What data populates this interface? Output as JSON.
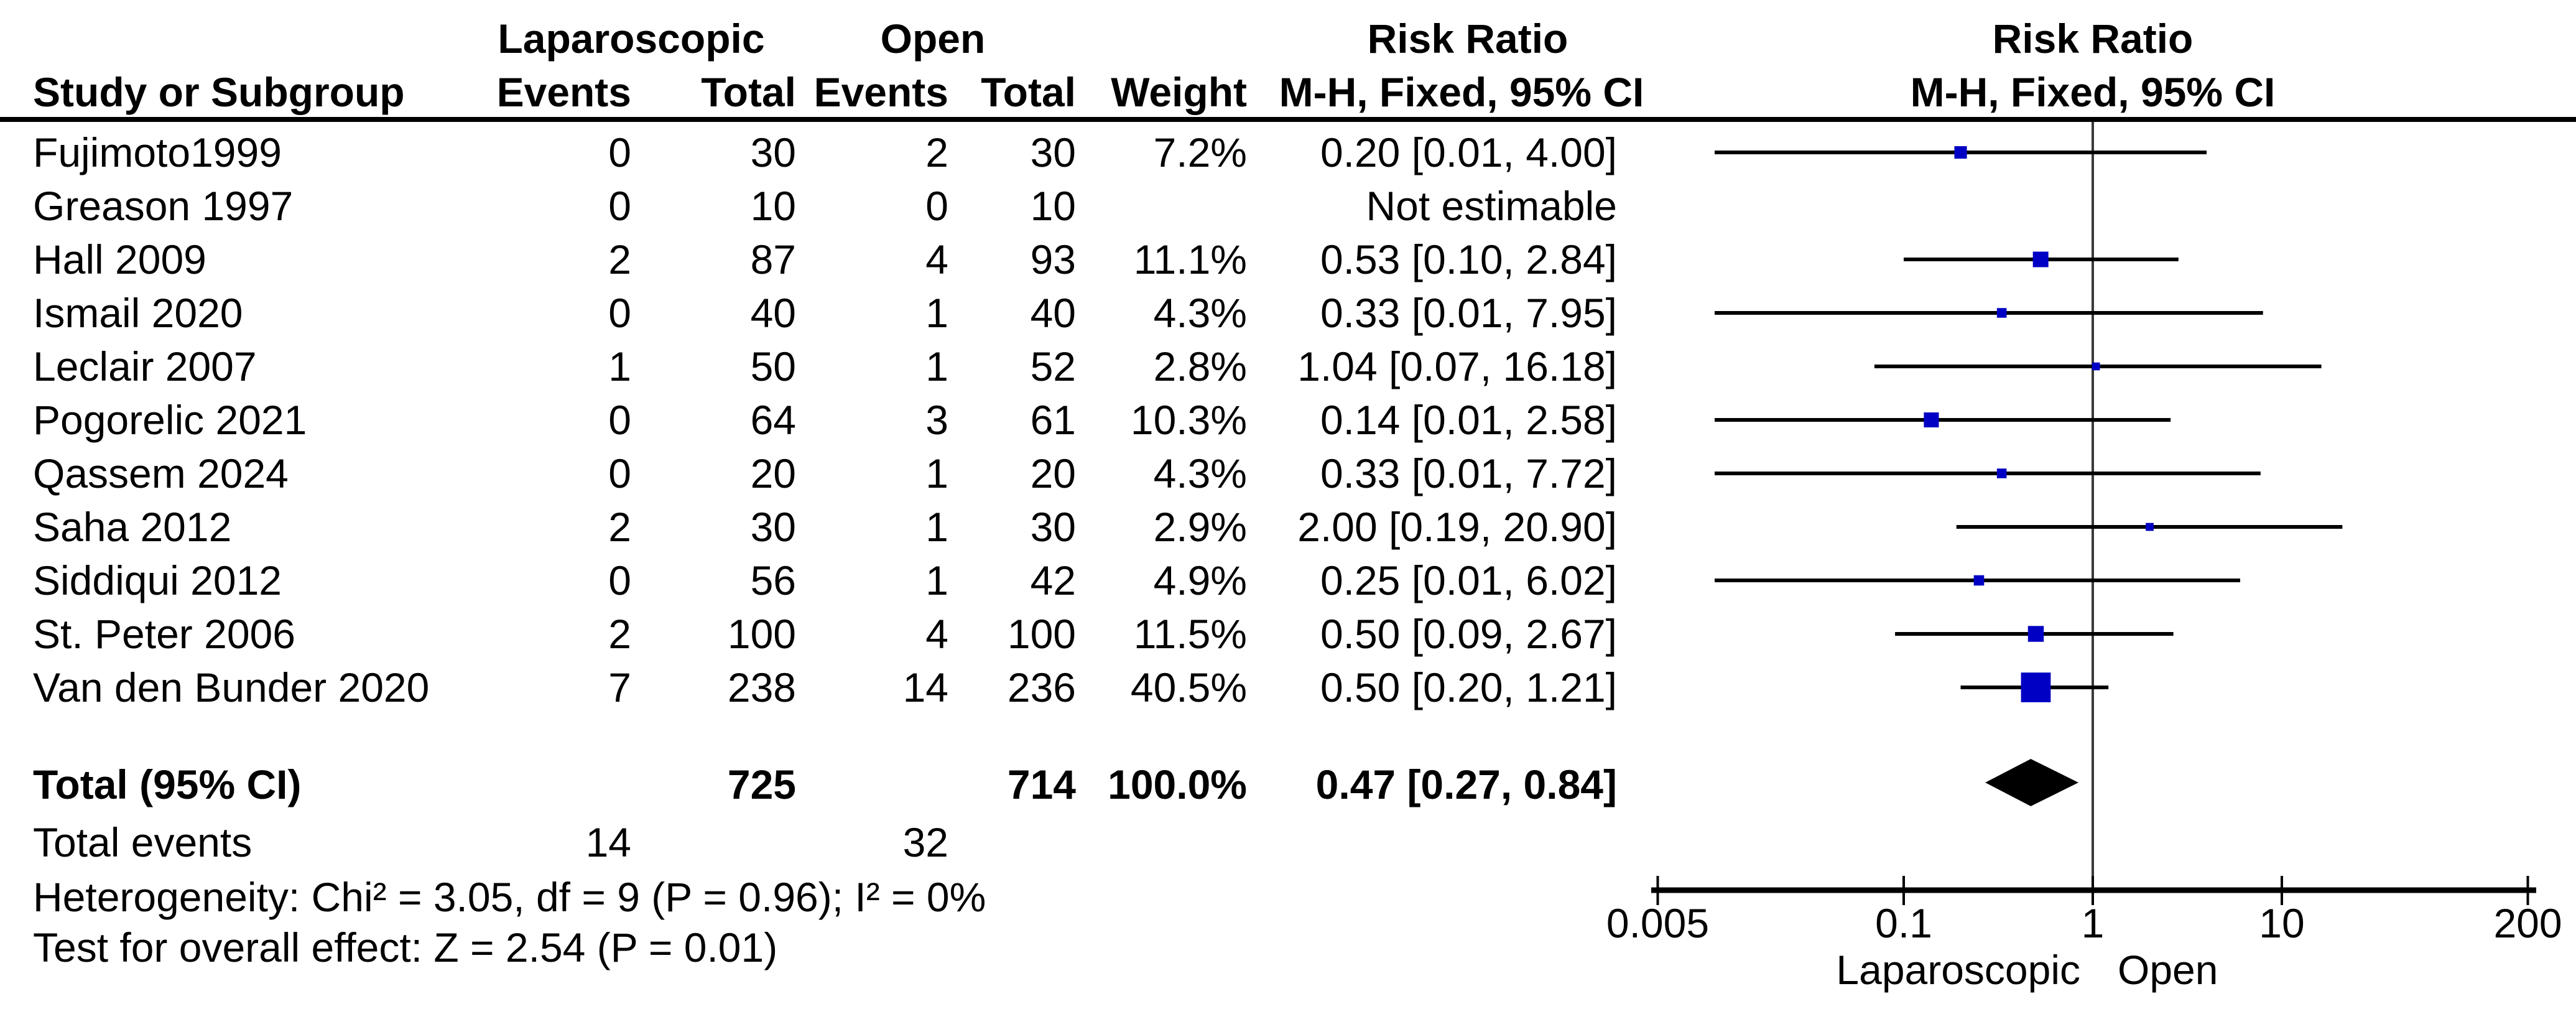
{
  "header": {
    "group_lap": "Laparoscopic",
    "group_open": "Open",
    "risk_ratio": "Risk Ratio",
    "col_study": "Study or Subgroup",
    "col_events": "Events",
    "col_total": "Total",
    "col_weight": "Weight",
    "col_mh": "M-H, Fixed, 95% CI"
  },
  "totals": {
    "label": "Total (95% CI)",
    "lap_total": "725",
    "open_total": "714",
    "weight": "100.0%",
    "rr_ci": "0.47 [0.27, 0.84]",
    "events_label": "Total events",
    "lap_events": "14",
    "open_events": "32"
  },
  "footer": {
    "heterogeneity": "Heterogeneity: Chi² = 3.05, df = 9 (P = 0.96); I² = 0%",
    "overall_effect": "Test for overall effect: Z = 2.54 (P = 0.01)"
  },
  "chart_data": {
    "type": "forest",
    "title": "Risk Ratio",
    "effect_measure": "M-H, Fixed, 95% CI",
    "x_scale": "log",
    "x_ticks": [
      0.005,
      0.1,
      1,
      10,
      200
    ],
    "x_tick_labels": [
      "0.005",
      "0.1",
      "1",
      "10",
      "200"
    ],
    "x_range": [
      0.005,
      200
    ],
    "null_line": 1,
    "favours_left": "Laparoscopic",
    "favours_right": "Open",
    "marker_color": "#0000C4",
    "line_color": "#000000",
    "studies": [
      {
        "name": "Fujimoto1999",
        "lap_events": "0",
        "lap_total": "30",
        "open_events": "2",
        "open_total": "30",
        "weight": "7.2%",
        "rr_ci": "0.20 [0.01, 4.00]",
        "rr": 0.2,
        "low": 0.01,
        "high": 4.0,
        "weight_pct": 7.2,
        "estimable": true
      },
      {
        "name": "Greason 1997",
        "lap_events": "0",
        "lap_total": "10",
        "open_events": "0",
        "open_total": "10",
        "weight": "",
        "rr_ci": "Not estimable",
        "rr": null,
        "low": null,
        "high": null,
        "weight_pct": 0,
        "estimable": false
      },
      {
        "name": "Hall 2009",
        "lap_events": "2",
        "lap_total": "87",
        "open_events": "4",
        "open_total": "93",
        "weight": "11.1%",
        "rr_ci": "0.53 [0.10, 2.84]",
        "rr": 0.53,
        "low": 0.1,
        "high": 2.84,
        "weight_pct": 11.1,
        "estimable": true
      },
      {
        "name": "Ismail 2020",
        "lap_events": "0",
        "lap_total": "40",
        "open_events": "1",
        "open_total": "40",
        "weight": "4.3%",
        "rr_ci": "0.33 [0.01, 7.95]",
        "rr": 0.33,
        "low": 0.01,
        "high": 7.95,
        "weight_pct": 4.3,
        "estimable": true
      },
      {
        "name": "Leclair 2007",
        "lap_events": "1",
        "lap_total": "50",
        "open_events": "1",
        "open_total": "52",
        "weight": "2.8%",
        "rr_ci": "1.04 [0.07, 16.18]",
        "rr": 1.04,
        "low": 0.07,
        "high": 16.18,
        "weight_pct": 2.8,
        "estimable": true
      },
      {
        "name": "Pogorelic 2021",
        "lap_events": "0",
        "lap_total": "64",
        "open_events": "3",
        "open_total": "61",
        "weight": "10.3%",
        "rr_ci": "0.14 [0.01, 2.58]",
        "rr": 0.14,
        "low": 0.01,
        "high": 2.58,
        "weight_pct": 10.3,
        "estimable": true
      },
      {
        "name": "Qassem 2024",
        "lap_events": "0",
        "lap_total": "20",
        "open_events": "1",
        "open_total": "20",
        "weight": "4.3%",
        "rr_ci": "0.33 [0.01, 7.72]",
        "rr": 0.33,
        "low": 0.01,
        "high": 7.72,
        "weight_pct": 4.3,
        "estimable": true
      },
      {
        "name": "Saha 2012",
        "lap_events": "2",
        "lap_total": "30",
        "open_events": "1",
        "open_total": "30",
        "weight": "2.9%",
        "rr_ci": "2.00 [0.19, 20.90]",
        "rr": 2.0,
        "low": 0.19,
        "high": 20.9,
        "weight_pct": 2.9,
        "estimable": true
      },
      {
        "name": "Siddiqui 2012",
        "lap_events": "0",
        "lap_total": "56",
        "open_events": "1",
        "open_total": "42",
        "weight": "4.9%",
        "rr_ci": "0.25 [0.01, 6.02]",
        "rr": 0.25,
        "low": 0.01,
        "high": 6.02,
        "weight_pct": 4.9,
        "estimable": true
      },
      {
        "name": "St. Peter 2006",
        "lap_events": "2",
        "lap_total": "100",
        "open_events": "4",
        "open_total": "100",
        "weight": "11.5%",
        "rr_ci": "0.50 [0.09, 2.67]",
        "rr": 0.5,
        "low": 0.09,
        "high": 2.67,
        "weight_pct": 11.5,
        "estimable": true
      },
      {
        "name": "Van den Bunder 2020",
        "lap_events": "7",
        "lap_total": "238",
        "open_events": "14",
        "open_total": "236",
        "weight": "40.5%",
        "rr_ci": "0.50 [0.20, 1.21]",
        "rr": 0.5,
        "low": 0.2,
        "high": 1.21,
        "weight_pct": 40.5,
        "estimable": true
      }
    ],
    "total": {
      "rr": 0.47,
      "low": 0.27,
      "high": 0.84
    }
  }
}
